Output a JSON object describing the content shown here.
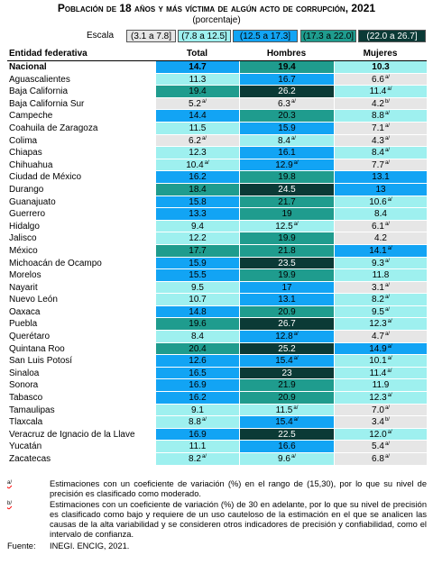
{
  "header": {
    "title": "Población de 18 años y más víctima de algún acto de corrupción, 2021",
    "subtitle": "(porcentaje)"
  },
  "scale": {
    "label": "Escala",
    "levels": [
      {
        "label": "(3.1 a 7.8]",
        "from": 3.1,
        "to": 7.8,
        "color": "#e6e6e6",
        "text_color": "#000000"
      },
      {
        "label": "(7.8 a 12.5]",
        "from": 7.8,
        "to": 12.5,
        "color": "#9ef0ef",
        "text_color": "#000000"
      },
      {
        "label": "(12.5 a 17.3]",
        "from": 12.5,
        "to": 17.3,
        "color": "#12a4f4",
        "text_color": "#000000"
      },
      {
        "label": "(17.3 a 22.0]",
        "from": 17.3,
        "to": 22.0,
        "color": "#1f9c8e",
        "text_color": "#000000"
      },
      {
        "label": "(22.0 a 26.7]",
        "from": 22.0,
        "to": 26.7,
        "color": "#0b3a36",
        "text_color": "#ffffff"
      }
    ]
  },
  "table": {
    "columns": [
      "Entidad federativa",
      "Total",
      "Hombres",
      "Mujeres"
    ],
    "rows": [
      [
        "Nacional",
        {
          "text": "14.7"
        },
        {
          "text": "19.4"
        },
        {
          "text": "10.3"
        }
      ],
      [
        "Aguascalientes",
        {
          "text": "11.3"
        },
        {
          "text": "16.7"
        },
        {
          "text": "6.6",
          "note": "a/"
        }
      ],
      [
        "Baja California",
        {
          "text": "19.4"
        },
        {
          "text": "26.2"
        },
        {
          "text": "11.4",
          "note": "a/"
        }
      ],
      [
        "Baja California Sur",
        {
          "text": "5.2",
          "note": "a/"
        },
        {
          "text": "6.3",
          "note": "a/"
        },
        {
          "text": "4.2",
          "note": "b/"
        }
      ],
      [
        "Campeche",
        {
          "text": "14.4"
        },
        {
          "text": "20.3"
        },
        {
          "text": "8.8",
          "note": "a/"
        }
      ],
      [
        "Coahuila de Zaragoza",
        {
          "text": "11.5"
        },
        {
          "text": "15.9"
        },
        {
          "text": "7.1",
          "note": "a/"
        }
      ],
      [
        "Colima",
        {
          "text": "6.2",
          "note": "a/"
        },
        {
          "text": "8.4",
          "note": "a/"
        },
        {
          "text": "4.3",
          "note": "a/"
        }
      ],
      [
        "Chiapas",
        {
          "text": "12.3"
        },
        {
          "text": "16.1"
        },
        {
          "text": "8.4",
          "note": "a/"
        }
      ],
      [
        "Chihuahua",
        {
          "text": "10.4",
          "note": "a/"
        },
        {
          "text": "12.9",
          "note": "a/"
        },
        {
          "text": "7.7",
          "note": "a/"
        }
      ],
      [
        "Ciudad de México",
        {
          "text": "16.2"
        },
        {
          "text": "19.8"
        },
        {
          "text": "13.1"
        }
      ],
      [
        "Durango",
        {
          "text": "18.4"
        },
        {
          "text": "24.5"
        },
        {
          "text": "13"
        }
      ],
      [
        "Guanajuato",
        {
          "text": "15.8"
        },
        {
          "text": "21.7"
        },
        {
          "text": "10.6",
          "note": "a/"
        }
      ],
      [
        "Guerrero",
        {
          "text": "13.3"
        },
        {
          "text": "19"
        },
        {
          "text": "8.4"
        }
      ],
      [
        "Hidalgo",
        {
          "text": "9.4"
        },
        {
          "text": "12.5",
          "note": "a/"
        },
        {
          "text": "6.1",
          "note": "a/"
        }
      ],
      [
        "Jalisco",
        {
          "text": "12.2"
        },
        {
          "text": "19.9"
        },
        {
          "text": "4.2"
        }
      ],
      [
        "México",
        {
          "text": "17.7"
        },
        {
          "text": "21.8"
        },
        {
          "text": "14.1",
          "note": "a/"
        }
      ],
      [
        "Michoacán de Ocampo",
        {
          "text": "15.9"
        },
        {
          "text": "23.5"
        },
        {
          "text": "9.3",
          "note": "a/"
        }
      ],
      [
        "Morelos",
        {
          "text": "15.5"
        },
        {
          "text": "19.9"
        },
        {
          "text": "11.8"
        }
      ],
      [
        "Nayarit",
        {
          "text": "9.5"
        },
        {
          "text": "17"
        },
        {
          "text": "3.1",
          "note": "a/"
        }
      ],
      [
        "Nuevo León",
        {
          "text": "10.7"
        },
        {
          "text": "13.1"
        },
        {
          "text": "8.2",
          "note": "a/"
        }
      ],
      [
        "Oaxaca",
        {
          "text": "14.8"
        },
        {
          "text": "20.9"
        },
        {
          "text": "9.5",
          "note": "a/"
        }
      ],
      [
        "Puebla",
        {
          "text": "19.6"
        },
        {
          "text": "26.7"
        },
        {
          "text": "12.3",
          "note": "a/"
        }
      ],
      [
        "Querétaro",
        {
          "text": "8.4"
        },
        {
          "text": "12.8",
          "note": "a/"
        },
        {
          "text": "4.7",
          "note": "a/"
        }
      ],
      [
        "Quintana Roo",
        {
          "text": "20.4"
        },
        {
          "text": "25.2"
        },
        {
          "text": "14.9",
          "note": "a/"
        }
      ],
      [
        "San Luis Potosí",
        {
          "text": "12.6"
        },
        {
          "text": "15.4",
          "note": "a/"
        },
        {
          "text": "10.1",
          "note": "a/"
        }
      ],
      [
        "Sinaloa",
        {
          "text": "16.5"
        },
        {
          "text": "23"
        },
        {
          "text": "11.4",
          "note": "a/"
        }
      ],
      [
        "Sonora",
        {
          "text": "16.9"
        },
        {
          "text": "21.9"
        },
        {
          "text": "11.9"
        }
      ],
      [
        "Tabasco",
        {
          "text": "16.2"
        },
        {
          "text": "20.9"
        },
        {
          "text": "12.3",
          "note": "a/"
        }
      ],
      [
        "Tamaulipas",
        {
          "text": "9.1"
        },
        {
          "text": "11.5",
          "note": "a/"
        },
        {
          "text": "7.0",
          "note": "a/"
        }
      ],
      [
        "Tlaxcala",
        {
          "text": "8.8",
          "note": "a/"
        },
        {
          "text": "15.4",
          "note": "a/"
        },
        {
          "text": "3.4",
          "note": "b/"
        }
      ],
      [
        "Veracruz de Ignacio de la Llave",
        {
          "text": "16.9"
        },
        {
          "text": "22.5"
        },
        {
          "text": "12.0",
          "note": "a/"
        }
      ],
      [
        "Yucatán",
        {
          "text": "11.1"
        },
        {
          "text": "16.6"
        },
        {
          "text": "5.4",
          "note": "a/"
        }
      ],
      [
        "Zacatecas",
        {
          "text": "8.2",
          "note": "a/"
        },
        {
          "text": "9.6",
          "note": "a/"
        },
        {
          "text": "6.8",
          "note": "a/"
        }
      ]
    ]
  },
  "footnotes": [
    {
      "mark": "a/",
      "text": "Estimaciones con un coeficiente de variación (%) en el rango de (15,30), por lo que su nivel de precisión es clasificado como moderado."
    },
    {
      "mark": "b/",
      "text": "Estimaciones con un coeficiente de variación (%) de 30 en adelante, por lo que su nivel de precisión es clasificado como bajo y requiere de un uso cauteloso de la estimación en el que se analicen las causas de la alta variabilidad y se consideren otros indicadores de precisión y confiabilidad, como el intervalo de confianza."
    }
  ],
  "source": {
    "label": "Fuente:",
    "text": "INEGI. ENCIG, 2021."
  }
}
